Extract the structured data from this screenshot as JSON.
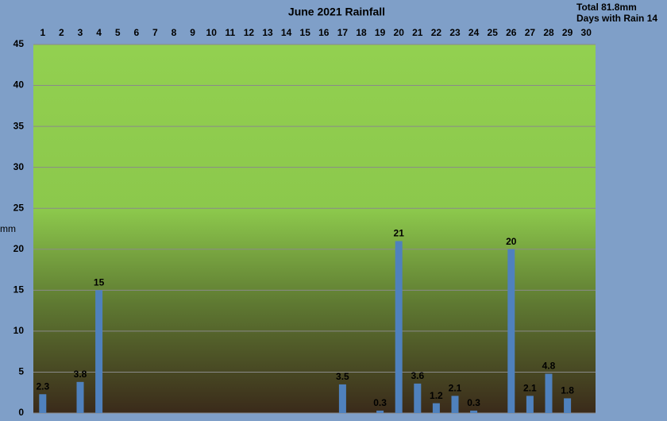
{
  "chart_data": {
    "type": "bar",
    "title": "June 2021 Rainfall",
    "annotations": [
      "Total 81.8mm",
      "Days with Rain 14"
    ],
    "y_label": "mm",
    "categories": [
      "1",
      "2",
      "3",
      "4",
      "5",
      "6",
      "7",
      "8",
      "9",
      "10",
      "11",
      "12",
      "13",
      "14",
      "15",
      "16",
      "17",
      "18",
      "19",
      "20",
      "21",
      "22",
      "23",
      "24",
      "25",
      "26",
      "27",
      "28",
      "29",
      "30"
    ],
    "values": [
      2.3,
      0,
      3.8,
      15,
      0,
      0,
      0,
      0,
      0,
      0,
      0,
      0,
      0,
      0,
      0,
      0,
      3.5,
      0,
      0.3,
      21,
      3.6,
      1.2,
      2.1,
      0.3,
      0,
      20,
      2.1,
      4.8,
      1.8,
      0
    ],
    "color": "#4f81bd",
    "ylim": [
      0,
      45
    ],
    "yticks": [
      0,
      5,
      10,
      15,
      20,
      25,
      30,
      35,
      40,
      45
    ],
    "grid": true
  }
}
